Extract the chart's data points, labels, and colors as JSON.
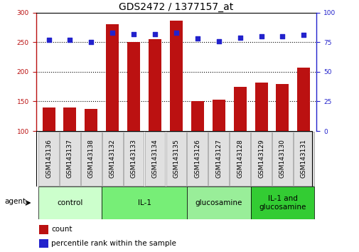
{
  "title": "GDS2472 / 1377157_at",
  "samples": [
    "GSM143136",
    "GSM143137",
    "GSM143138",
    "GSM143132",
    "GSM143133",
    "GSM143134",
    "GSM143135",
    "GSM143126",
    "GSM143127",
    "GSM143128",
    "GSM143129",
    "GSM143130",
    "GSM143131"
  ],
  "counts": [
    140,
    140,
    137,
    280,
    250,
    255,
    287,
    150,
    153,
    175,
    182,
    180,
    207
  ],
  "percentiles": [
    77,
    77,
    75,
    83,
    82,
    82,
    83,
    78,
    76,
    79,
    80,
    80,
    81
  ],
  "bar_color": "#bb1111",
  "dot_color": "#2222cc",
  "ylim_left": [
    100,
    300
  ],
  "ylim_right": [
    0,
    100
  ],
  "yticks_left": [
    100,
    150,
    200,
    250,
    300
  ],
  "yticks_right": [
    0,
    25,
    50,
    75,
    100
  ],
  "groups": [
    {
      "label": "control",
      "start": 0,
      "end": 3,
      "color": "#ccffcc"
    },
    {
      "label": "IL-1",
      "start": 3,
      "end": 7,
      "color": "#77ee77"
    },
    {
      "label": "glucosamine",
      "start": 7,
      "end": 10,
      "color": "#99ee99"
    },
    {
      "label": "IL-1 and\nglucosamine",
      "start": 10,
      "end": 13,
      "color": "#33cc33"
    }
  ],
  "agent_label": "agent",
  "legend_count": "count",
  "legend_percentile": "percentile rank within the sample",
  "grid_values": [
    150,
    200,
    250
  ],
  "bar_width": 0.6,
  "title_fontsize": 10,
  "tick_fontsize": 6.5,
  "label_fontsize": 7.5
}
